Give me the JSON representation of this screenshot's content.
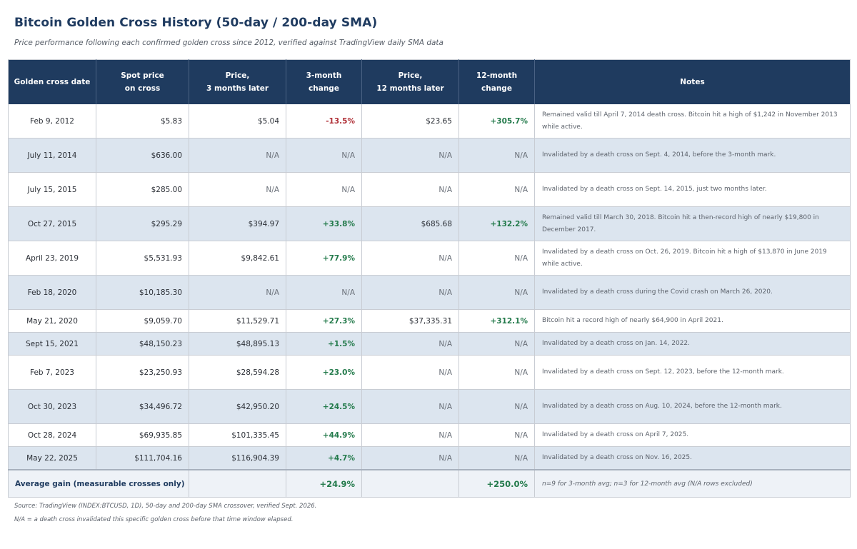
{
  "title": "Bitcoin Golden Cross History (50-day / 200-day SMA)",
  "subtitle": "Price performance following each confirmed golden cross since 2012, verified against TradingView daily SMA data",
  "headers": {
    "date": "Golden cross date",
    "spot_l1": "Spot price",
    "spot_l2": "on cross",
    "p3_l1": "Price,",
    "p3_l2": "3 months later",
    "c3_l1": "3-month",
    "c3_l2": "change",
    "p12_l1": "Price,",
    "p12_l2": "12 months later",
    "c12_l1": "12-month",
    "c12_l2": "change",
    "notes": "Notes"
  },
  "rows": [
    {
      "date": "Feb 9, 2012",
      "spot": "$5.83",
      "p3": "$5.04",
      "c3": "-13.5%",
      "p12": "$23.65",
      "c12": "+305.7%",
      "note": "Remained valid till April 7, 2014 death cross. Bitcoin hit a high of $1,242 in November 2013 while active."
    },
    {
      "date": "July 11, 2014",
      "spot": "$636.00",
      "p3": "N/A",
      "c3": "N/A",
      "p12": "N/A",
      "c12": "N/A",
      "note": "Invalidated by a death cross on Sept. 4, 2014, before the 3-month mark."
    },
    {
      "date": "July 15, 2015",
      "spot": "$285.00",
      "p3": "N/A",
      "c3": "N/A",
      "p12": "N/A",
      "c12": "N/A",
      "note": "Invalidated by a death cross on Sept. 14, 2015, just two months later."
    },
    {
      "date": "Oct 27, 2015",
      "spot": "$295.29",
      "p3": "$394.97",
      "c3": "+33.8%",
      "p12": "$685.68",
      "c12": "+132.2%",
      "note": "Remained valid till March 30, 2018. Bitcoin hit a then-record high of nearly $19,800 in December 2017."
    },
    {
      "date": "April 23, 2019",
      "spot": "$5,531.93",
      "p3": "$9,842.61",
      "c3": "+77.9%",
      "p12": "N/A",
      "c12": "N/A",
      "note": "Invalidated by a death cross on Oct. 26, 2019. Bitcoin hit a high of $13,870 in June 2019 while active."
    },
    {
      "date": "Feb 18, 2020",
      "spot": "$10,185.30",
      "p3": "N/A",
      "c3": "N/A",
      "p12": "N/A",
      "c12": "N/A",
      "note": "Invalidated by a death cross during the Covid crash on March 26, 2020."
    },
    {
      "date": "May 21, 2020",
      "spot": "$9,059.70",
      "p3": "$11,529.71",
      "c3": "+27.3%",
      "p12": "$37,335.31",
      "c12": "+312.1%",
      "note": "Bitcoin hit a record high of nearly $64,900 in April 2021."
    },
    {
      "date": "Sept 15, 2021",
      "spot": "$48,150.23",
      "p3": "$48,895.13",
      "c3": "+1.5%",
      "p12": "N/A",
      "c12": "N/A",
      "note": "Invalidated by a death cross on Jan. 14, 2022."
    },
    {
      "date": "Feb 7, 2023",
      "spot": "$23,250.93",
      "p3": "$28,594.28",
      "c3": "+23.0%",
      "p12": "N/A",
      "c12": "N/A",
      "note": "Invalidated by a death cross on Sept. 12, 2023, before the 12-month mark."
    },
    {
      "date": "Oct 30, 2023",
      "spot": "$34,496.72",
      "p3": "$42,950.20",
      "c3": "+24.5%",
      "p12": "N/A",
      "c12": "N/A",
      "note": "Invalidated by a death cross on Aug. 10, 2024, before the 12-month mark."
    },
    {
      "date": "Oct 28, 2024",
      "spot": "$69,935.85",
      "p3": "$101,335.45",
      "c3": "+44.9%",
      "p12": "N/A",
      "c12": "N/A",
      "note": "Invalidated by a death cross on April 7, 2025."
    },
    {
      "date": "May 22, 2025",
      "spot": "$111,704.16",
      "p3": "$116,904.39",
      "c3": "+4.7%",
      "p12": "N/A",
      "c12": "N/A",
      "note": "Invalidated by a death cross on Nov. 16, 2025."
    }
  ],
  "footer": {
    "label": "Average gain (measurable crosses only)",
    "avg3": "+24.9%",
    "avg12": "+250.0%",
    "note": "n=9 for 3-month avg; n=3 for 12-month avg (N/A rows excluded)"
  },
  "source": "Source: TradingView (INDEX:BTCUSD, 1D), 50-day and 200-day SMA crossover, verified Sept. 2026.",
  "na_note": "N/A = a death cross invalidated this specific golden cross before that time window elapsed.",
  "colors": {
    "header_bg": "#1f3b5f",
    "alt_row": "#dce5ef",
    "positive": "#237a4b",
    "negative": "#b03037"
  },
  "chart_data": {
    "type": "table",
    "title": "Bitcoin Golden Cross History (50-day / 200-day SMA)",
    "columns": [
      "Golden cross date",
      "Spot price on cross",
      "Price, 3 months later",
      "3-month change",
      "Price, 12 months later",
      "12-month change",
      "Notes"
    ],
    "averages": {
      "three_month_change_pct": 24.9,
      "twelve_month_change_pct": 250.0
    }
  }
}
